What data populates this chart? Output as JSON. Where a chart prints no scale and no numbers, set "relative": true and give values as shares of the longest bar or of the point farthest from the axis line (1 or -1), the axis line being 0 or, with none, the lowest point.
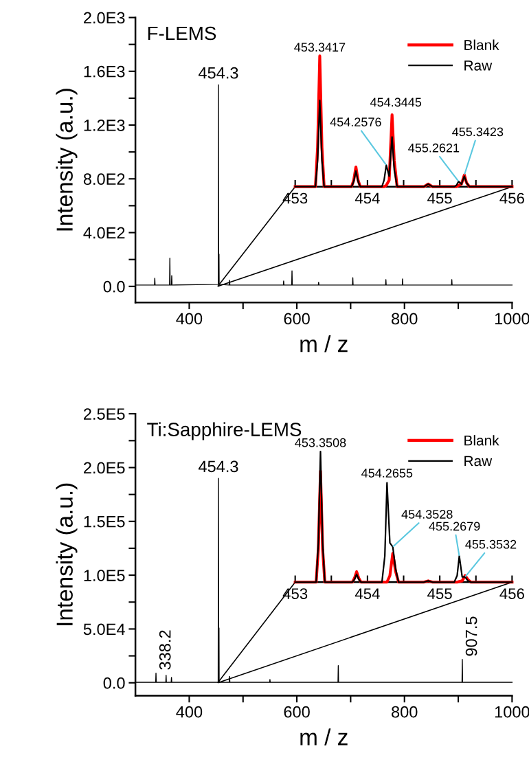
{
  "chart_data": [
    {
      "type": "line",
      "title": "F-LEMS",
      "xlabel": "m / z",
      "ylabel": "Intensity (a.u.)",
      "xlim": [
        300,
        1000
      ],
      "ylim": [
        -120,
        2000
      ],
      "xticks": [
        400,
        {
          "value": 500,
          "label": null
        },
        600,
        {
          "value": 700,
          "label": null
        },
        800,
        {
          "value": 900,
          "label": null
        },
        1000
      ],
      "yticks": [
        {
          "value": 0,
          "label": "0.0"
        },
        {
          "value": 200,
          "label": null
        },
        {
          "value": 400,
          "label": "4.0E2"
        },
        {
          "value": 600,
          "label": null
        },
        {
          "value": 800,
          "label": "8.0E2"
        },
        {
          "value": 1000,
          "label": null
        },
        {
          "value": 1200,
          "label": "1.2E3"
        },
        {
          "value": 1400,
          "label": null
        },
        {
          "value": 1600,
          "label": "1.6E3"
        },
        {
          "value": 1800,
          "label": null
        },
        {
          "value": 2000,
          "label": "2.0E3"
        }
      ],
      "series": [
        {
          "color": "#000000",
          "x": [
            300,
            335.5,
            336,
            336.5,
            363.5,
            364,
            364.5,
            367,
            367.5,
            368,
            454,
            454.3,
            454.6,
            455,
            455.3,
            455.6,
            474.5,
            475,
            475.5,
            575,
            575.5,
            576,
            590.5,
            591,
            591.5,
            640,
            640.5,
            641,
            703.5,
            704,
            704.5,
            765,
            765.5,
            766,
            796,
            796.5,
            797,
            887.5,
            888,
            888.5,
            1000
          ],
          "values": [
            10,
            10,
            60,
            10,
            10,
            210,
            10,
            10,
            80,
            10,
            15,
            1500,
            15,
            15,
            240,
            15,
            10,
            45,
            10,
            10,
            40,
            10,
            10,
            115,
            10,
            10,
            30,
            10,
            10,
            65,
            10,
            10,
            50,
            10,
            10,
            55,
            10,
            10,
            50,
            10,
            10
          ]
        }
      ],
      "annotations": [
        {
          "text": "454.3",
          "x": 454.3,
          "y": 1500
        }
      ],
      "legend": false,
      "grid": false
    },
    {
      "type": "line",
      "relative": true,
      "xlim": [
        453,
        456
      ],
      "xticks": [
        453,
        {
          "value": 453.5,
          "label": null
        },
        454,
        {
          "value": 454.5,
          "label": null
        },
        455,
        {
          "value": 455.5,
          "label": null
        },
        456
      ],
      "x": [
        453.0,
        453.28,
        453.31,
        453.34,
        453.37,
        453.4,
        453.78,
        453.81,
        453.84,
        453.87,
        453.9,
        454.2,
        454.23,
        454.26,
        454.3,
        454.34,
        454.37,
        454.41,
        454.78,
        454.84,
        454.9,
        455.2,
        455.23,
        455.26,
        455.3,
        455.34,
        455.37,
        455.41,
        456.0
      ],
      "series": [
        {
          "name": "Blank",
          "color": "#ff0000",
          "values": [
            0,
            0,
            0.3,
            1.0,
            0.3,
            0,
            0,
            0.05,
            0.15,
            0.05,
            0,
            0,
            0,
            0.01,
            0.05,
            0.55,
            0.2,
            0,
            0,
            0.02,
            0,
            0,
            0,
            0.01,
            0.02,
            0.09,
            0.03,
            0,
            0
          ]
        },
        {
          "name": "Raw",
          "color": "#000000",
          "values": [
            0,
            0,
            0.2,
            0.66,
            0.2,
            0,
            0,
            0.04,
            0.12,
            0.04,
            0,
            0,
            0.05,
            0.165,
            0.08,
            0.38,
            0.13,
            0,
            0,
            0.02,
            0,
            0,
            0.01,
            0.04,
            0.02,
            0.08,
            0.03,
            0,
            0
          ]
        }
      ],
      "annotations": [
        {
          "text": "453.3417",
          "x": 453.34,
          "y": 1.0
        },
        {
          "text": "454.3445",
          "x": 454.34,
          "y": 0.55
        },
        {
          "text": "454.2576",
          "x": 454.26,
          "y": 0.165
        },
        {
          "text": "455.2621",
          "x": 455.26,
          "y": 0.04
        },
        {
          "text": "455.3423",
          "x": 455.34,
          "y": 0.09
        }
      ],
      "legend": "top right",
      "grid": false
    },
    {
      "type": "line",
      "title": "Ti:Sapphire-LEMS",
      "xlabel": "m / z",
      "ylabel": "Intensity (a.u.)",
      "xlim": [
        300,
        1000
      ],
      "ylim": [
        -12000,
        250000
      ],
      "xticks": [
        400,
        {
          "value": 500,
          "label": null
        },
        600,
        {
          "value": 700,
          "label": null
        },
        800,
        {
          "value": 900,
          "label": null
        },
        1000
      ],
      "yticks": [
        {
          "value": 0,
          "label": "0.0"
        },
        {
          "value": 25000,
          "label": null
        },
        {
          "value": 50000,
          "label": "5.0E4"
        },
        {
          "value": 75000,
          "label": null
        },
        {
          "value": 100000,
          "label": "1.0E5"
        },
        {
          "value": 125000,
          "label": null
        },
        {
          "value": 150000,
          "label": "1.5E5"
        },
        {
          "value": 175000,
          "label": null
        },
        {
          "value": 200000,
          "label": "2.0E5"
        },
        {
          "value": 225000,
          "label": null
        },
        {
          "value": 250000,
          "label": "2.5E5"
        }
      ],
      "series": [
        {
          "color": "#000000",
          "x": [
            300,
            337.7,
            338.2,
            338.7,
            356.5,
            357,
            357.5,
            366.5,
            367,
            367.5,
            453.8,
            454.3,
            454.8,
            455,
            455.3,
            455.6,
            474.5,
            475,
            475.5,
            549.5,
            550,
            550.5,
            676.5,
            677,
            677.5,
            907,
            907.5,
            908,
            1000
          ],
          "values": [
            500,
            500,
            9000,
            500,
            500,
            7000,
            500,
            500,
            5000,
            500,
            500,
            190000,
            500,
            500,
            51000,
            500,
            500,
            6000,
            500,
            500,
            3000,
            500,
            500,
            16000,
            500,
            500,
            21700,
            500,
            500
          ]
        }
      ],
      "annotations": [
        {
          "text": "454.3",
          "x": 454.3,
          "y": 190000
        },
        {
          "text": "338.2",
          "x": 338.2,
          "y": 9000
        },
        {
          "text": "907.5",
          "x": 907.5,
          "y": 21700
        }
      ],
      "legend": false,
      "grid": false
    },
    {
      "type": "line",
      "relative": true,
      "xlim": [
        453,
        456
      ],
      "xticks": [
        453,
        {
          "value": 453.5,
          "label": null
        },
        454,
        {
          "value": 454.5,
          "label": null
        },
        455,
        {
          "value": 455.5,
          "label": null
        },
        456
      ],
      "x": [
        453.0,
        453.29,
        453.32,
        453.35,
        453.38,
        453.41,
        453.79,
        453.82,
        453.85,
        453.88,
        453.91,
        454.2,
        454.24,
        454.27,
        454.31,
        454.35,
        454.39,
        454.43,
        454.78,
        454.84,
        454.9,
        455.2,
        455.24,
        455.27,
        455.31,
        455.35,
        455.39,
        455.43,
        456.0
      ],
      "series": [
        {
          "name": "Blank",
          "color": "#ff0000",
          "values": [
            0,
            0,
            0.25,
            0.85,
            0.25,
            0,
            0,
            0.03,
            0.08,
            0.03,
            0,
            0,
            0,
            0,
            0.05,
            0.22,
            0.08,
            0,
            0,
            0.01,
            0,
            0,
            0,
            0.005,
            0.01,
            0.05,
            0.02,
            0,
            0
          ]
        },
        {
          "name": "Raw",
          "color": "#000000",
          "values": [
            0,
            0,
            0.3,
            1.0,
            0.3,
            0,
            0,
            0.02,
            0.06,
            0.02,
            0,
            0,
            0.2,
            0.76,
            0.3,
            0.27,
            0.1,
            0,
            0,
            0.01,
            0,
            0,
            0.05,
            0.2,
            0.04,
            0.04,
            0.01,
            0,
            0
          ]
        }
      ],
      "annotations": [
        {
          "text": "453.3508",
          "x": 453.35,
          "y": 1.0
        },
        {
          "text": "454.2655",
          "x": 454.27,
          "y": 0.76
        },
        {
          "text": "454.3528",
          "x": 454.35,
          "y": 0.27
        },
        {
          "text": "455.2679",
          "x": 455.27,
          "y": 0.2
        },
        {
          "text": "455.3532",
          "x": 455.35,
          "y": 0.04
        }
      ],
      "legend": "top right",
      "grid": false
    }
  ]
}
